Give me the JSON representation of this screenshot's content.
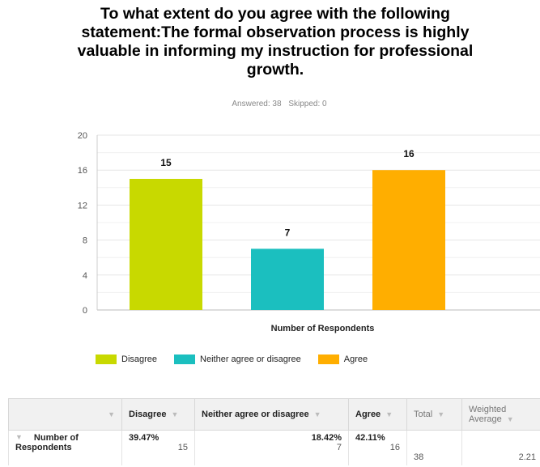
{
  "title": "To what extent do you agree with the following statement:The formal observation process is highly valuable in informing my instruction for professional growth.",
  "answered": "Answered: 38",
  "skipped": "Skipped: 0",
  "chart_data": {
    "type": "bar",
    "categories": [
      "Disagree",
      "Neither agree or disagree",
      "Agree"
    ],
    "values": [
      15,
      7,
      16
    ],
    "colors": [
      "#c8d900",
      "#1bbfbf",
      "#ffae00"
    ],
    "xlabel": "Number of Respondents",
    "ylabel": "",
    "ylim": [
      0,
      20
    ],
    "yticks": [
      0,
      4,
      8,
      12,
      16,
      20
    ],
    "grid": true,
    "legend": "bottom"
  },
  "legend": [
    {
      "label": "Disagree",
      "color": "#c8d900"
    },
    {
      "label": "Neither agree or disagree",
      "color": "#1bbfbf"
    },
    {
      "label": "Agree",
      "color": "#ffae00"
    }
  ],
  "table": {
    "headers": [
      "Disagree",
      "Neither agree or disagree",
      "Agree",
      "Total",
      "Weighted Average"
    ],
    "row": {
      "label": "Number of Respondents",
      "cells": [
        {
          "pct": "39.47%",
          "count": "15"
        },
        {
          "pct": "18.42%",
          "count": "7"
        },
        {
          "pct": "42.11%",
          "count": "16"
        }
      ],
      "total": "38",
      "weighted_average": "2.21"
    }
  }
}
